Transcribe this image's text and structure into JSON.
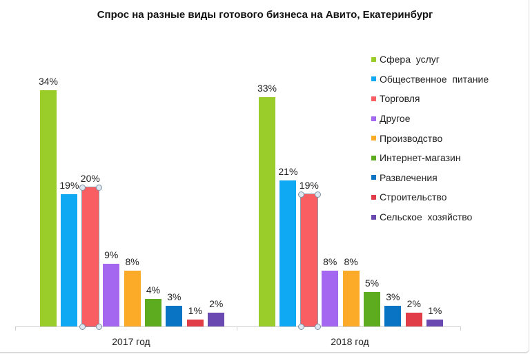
{
  "chart_data": {
    "type": "bar",
    "title": "Спрос на разные виды готового бизнеса на Авито,  Екатеринбург",
    "xlabel": "",
    "ylabel": "",
    "categories": [
      "2017 год",
      "2018 год"
    ],
    "series": [
      {
        "name": "Сфера  услуг",
        "color": "#9acd2a",
        "values": [
          34,
          33
        ],
        "labels": [
          "34%",
          "33%"
        ]
      },
      {
        "name": "Общественное  питание",
        "color": "#0fa8f2",
        "values": [
          19,
          21
        ],
        "labels": [
          "19%",
          "21%"
        ]
      },
      {
        "name": "Торговля",
        "color": "#f95e63",
        "values": [
          20,
          19
        ],
        "labels": [
          "20%",
          "19%"
        ]
      },
      {
        "name": "Другое",
        "color": "#a468f0",
        "values": [
          9,
          8
        ],
        "labels": [
          "9%",
          "8%"
        ]
      },
      {
        "name": "Производство",
        "color": "#fbab27",
        "values": [
          8,
          8
        ],
        "labels": [
          "8%",
          "8%"
        ]
      },
      {
        "name": "Интернет-магазин",
        "color": "#5dab1e",
        "values": [
          4,
          5
        ],
        "labels": [
          "4%",
          "5%"
        ]
      },
      {
        "name": "Развлечения",
        "color": "#0a74c4",
        "values": [
          3,
          3
        ],
        "labels": [
          "3%",
          "3%"
        ]
      },
      {
        "name": "Строительство",
        "color": "#e03d48",
        "values": [
          1,
          2
        ],
        "labels": [
          "1%",
          "2%"
        ]
      },
      {
        "name": "Сельское  хозяйство",
        "color": "#6a49b0",
        "values": [
          2,
          1
        ],
        "labels": [
          "2%",
          "1%"
        ]
      }
    ],
    "ylim": [
      0,
      35
    ],
    "grid": false,
    "legend_position": "right",
    "data_labels": true
  }
}
